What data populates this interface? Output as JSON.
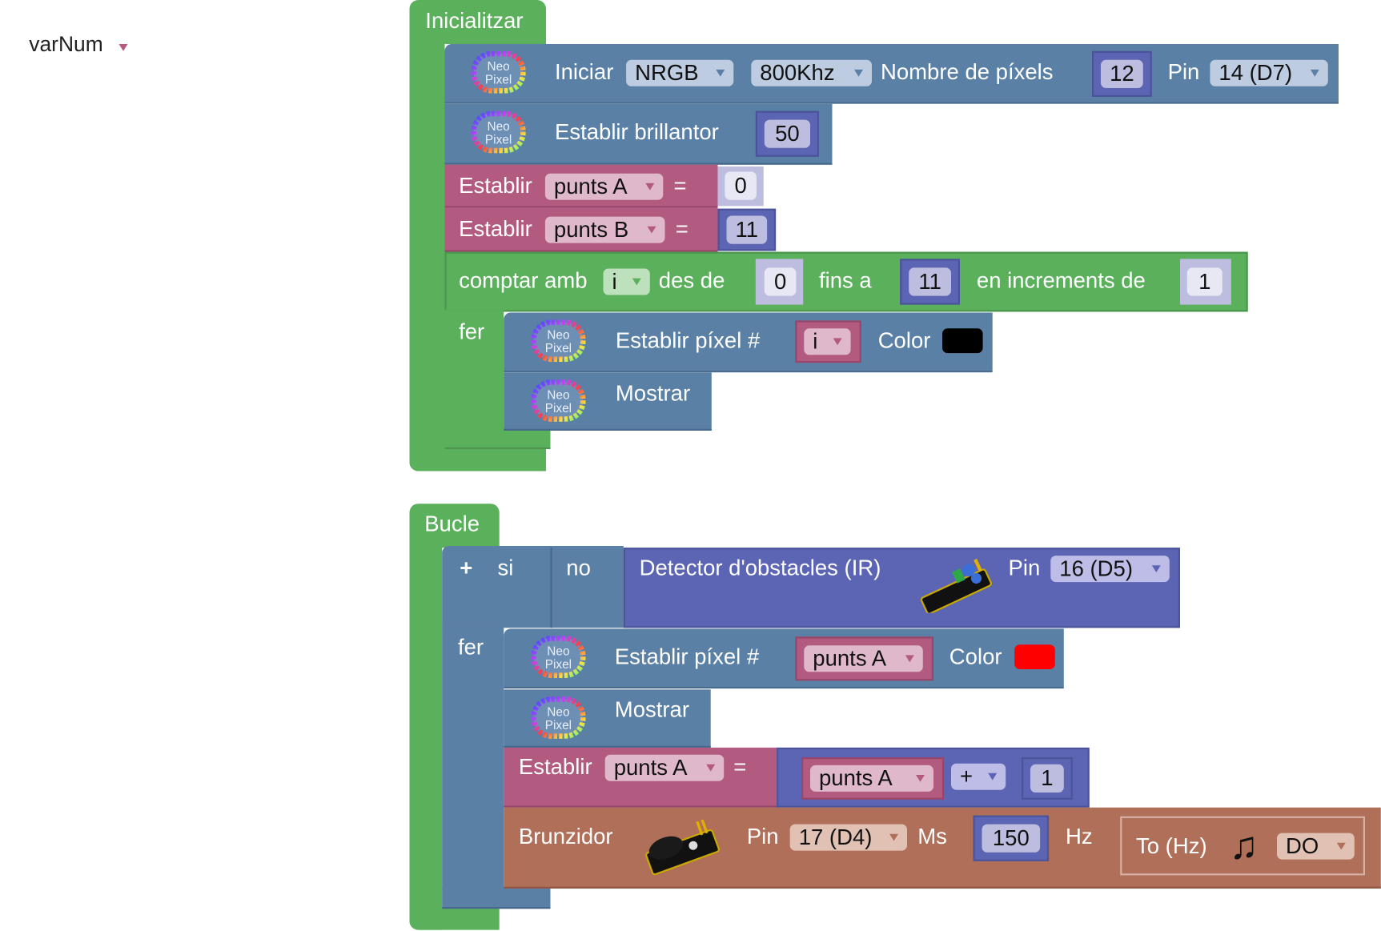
{
  "variable_dropdown": {
    "label": "varNum",
    "color": "#b35a80"
  },
  "colors": {
    "green": "#5bb05c",
    "blue": "#5b80a5",
    "pink": "#b35a80",
    "purple": "#5b65b3",
    "brown": "#b06f58"
  },
  "icons": {
    "neopixel": "neopixel-logo",
    "neopixel_text": "Neo Pixel",
    "ir_sensor": "ir-sensor-image",
    "buzzer": "buzzer-image",
    "music_note": "music-note-icon"
  },
  "init": {
    "title": "Inicialitzar",
    "iniciar": {
      "label": "Iniciar",
      "type": "NRGB",
      "freq": "800Khz",
      "pixels_label": "Nombre de píxels",
      "pixels": "12",
      "pin_label": "Pin",
      "pin": "14 (D7)"
    },
    "brightness": {
      "label": "Establir brillantor",
      "value": "50"
    },
    "set_a": {
      "label": "Establir",
      "var": "punts A",
      "eq": "=",
      "value": "0"
    },
    "set_b": {
      "label": "Establir",
      "var": "punts B",
      "eq": "=",
      "value": "11"
    },
    "for": {
      "label": "comptar amb",
      "var": "i",
      "from_label": "des de",
      "from": "0",
      "to_label": "fins a",
      "to": "11",
      "by_label": "en increments de",
      "by": "1",
      "do_label": "fer",
      "set_pixel": {
        "label": "Establir píxel #",
        "index": "i",
        "color_label": "Color",
        "color": "#000000"
      },
      "show": {
        "label": "Mostrar"
      }
    }
  },
  "loop": {
    "title": "Bucle",
    "if": {
      "plus": "+",
      "si": "si",
      "no": "no",
      "do_label": "fer",
      "sensor": {
        "label": "Detector d'obstacles (IR)",
        "pin_label": "Pin",
        "pin": "16 (D5)"
      },
      "set_pixel": {
        "label": "Establir píxel #",
        "index": "punts A",
        "color_label": "Color",
        "color": "#ff0000"
      },
      "show": {
        "label": "Mostrar"
      },
      "set": {
        "label": "Establir",
        "var": "punts A",
        "eq": "=",
        "lhs": "punts A",
        "op": "+",
        "rhs": "1"
      },
      "buzzer": {
        "label": "Brunzidor",
        "pin_label": "Pin",
        "pin": "17 (D4)",
        "ms_label": "Ms",
        "ms": "150",
        "hz_label": "Hz",
        "tone_label": "To (Hz)",
        "tone": "DO"
      }
    }
  }
}
